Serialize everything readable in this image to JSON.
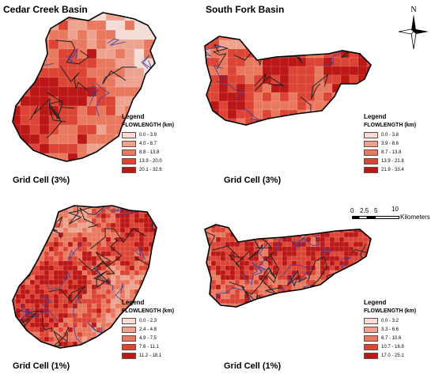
{
  "titles": {
    "cedar": "Cedar Creek Basin",
    "south": "South Fork Basin"
  },
  "compass": {
    "north_label": "N"
  },
  "scale": {
    "ticks": [
      "0",
      "2.5",
      "5",
      "10"
    ],
    "unit": "Kilometers"
  },
  "colors": {
    "class1": "#f6dcd6",
    "class2": "#eea391",
    "class3": "#e8795f",
    "class4": "#dc4535",
    "class5": "#bb1717",
    "boundary": "#000000",
    "streams": "#3b3f9c"
  },
  "panels": [
    {
      "id": "cedar-3",
      "caption": "Grid Cell (3%)",
      "legend_title": "Legend",
      "legend_field": "FLOWLENGTH (km)",
      "classes": [
        "0.0 - 3.9",
        "4.0 - 8.7",
        "8.8 - 13.8",
        "13.9 - 20.0",
        "20.1 - 32.6"
      ]
    },
    {
      "id": "south-3",
      "caption": "Grid Cell (3%)",
      "legend_title": "Legend",
      "legend_field": "FLOWLENGTH (km)",
      "classes": [
        "0.0 - 3.8",
        "3.9 - 8.6",
        "8.7 - 13.8",
        "13.9 - 21.8",
        "21.9 - 33.4"
      ]
    },
    {
      "id": "cedar-1",
      "caption": "Grid Cell (1%)",
      "legend_title": "Legend",
      "legend_field": "FLOWLENGTH (km)",
      "classes": [
        "0.0 - 2.3",
        "2.4 - 4.8",
        "4.9 - 7.5",
        "7.6 - 11.1",
        "11.2 - 18.1"
      ]
    },
    {
      "id": "south-1",
      "caption": "Grid Cell (1%)",
      "legend_title": "Legend",
      "legend_field": "FLOWLENGTH (km)",
      "classes": [
        "0.0 - 3.2",
        "3.3 - 6.6",
        "6.7 - 10.6",
        "10.7 - 16.9",
        "17.0 - 25.1"
      ]
    }
  ]
}
